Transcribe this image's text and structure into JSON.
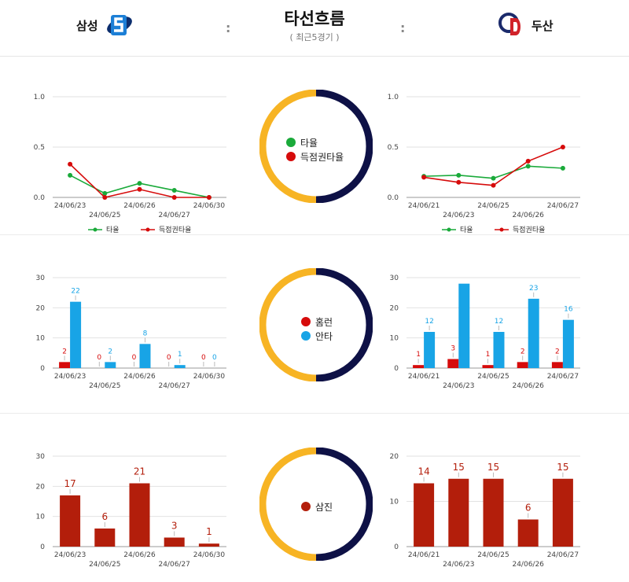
{
  "header": {
    "left_team": "삼성",
    "right_team": "두산",
    "title": "타선흐름",
    "subtitle": "( 최근5경기 )",
    "separator": ":"
  },
  "colors": {
    "green": "#1aaa3a",
    "red": "#d60b0b",
    "blue": "#18a4e6",
    "darkred": "#b31e0b",
    "gold": "#f7b424",
    "navy": "#0e1146"
  },
  "center_legends": {
    "avg": [
      {
        "label": "타율",
        "color": "#1aaa3a"
      },
      {
        "label": "득점권타율",
        "color": "#d60b0b"
      }
    ],
    "hr_hits": [
      {
        "label": "홈런",
        "color": "#d60b0b"
      },
      {
        "label": "안타",
        "color": "#18a4e6"
      }
    ],
    "so": [
      {
        "label": "삼진",
        "color": "#b31e0b"
      }
    ]
  },
  "chart_data": [
    {
      "id": "samsung-avg",
      "type": "line",
      "x": [
        "24/06/23",
        "24/06/25",
        "24/06/26",
        "24/06/27",
        "24/06/30"
      ],
      "ylim": [
        0,
        1.0
      ],
      "yticks": [
        "0.0",
        "0.5",
        "1.0"
      ],
      "series": [
        {
          "name": "타율",
          "color": "#1aaa3a",
          "values": [
            0.22,
            0.04,
            0.14,
            0.07,
            0.0
          ]
        },
        {
          "name": "득점권타율",
          "color": "#d60b0b",
          "values": [
            0.33,
            0.0,
            0.08,
            0.0,
            0.0
          ]
        }
      ]
    },
    {
      "id": "doosan-avg",
      "type": "line",
      "x": [
        "24/06/21",
        "24/06/23",
        "24/06/25",
        "24/06/26",
        "24/06/27"
      ],
      "ylim": [
        0,
        1.0
      ],
      "yticks": [
        "0.0",
        "0.5",
        "1.0"
      ],
      "series": [
        {
          "name": "타율",
          "color": "#1aaa3a",
          "values": [
            0.21,
            0.22,
            0.19,
            0.31,
            0.29
          ]
        },
        {
          "name": "득점권타율",
          "color": "#d60b0b",
          "values": [
            0.2,
            0.15,
            0.12,
            0.36,
            0.5
          ]
        }
      ]
    },
    {
      "id": "samsung-hr-hits",
      "type": "bar",
      "categories": [
        "24/06/23",
        "24/06/25",
        "24/06/26",
        "24/06/27",
        "24/06/30"
      ],
      "ylim": [
        0,
        30
      ],
      "yticks": [
        "0",
        "10",
        "20",
        "30"
      ],
      "series": [
        {
          "name": "홈런",
          "color": "#d60b0b",
          "values": [
            2,
            0,
            0,
            0,
            0
          ]
        },
        {
          "name": "안타",
          "color": "#18a4e6",
          "values": [
            22,
            2,
            8,
            1,
            0
          ]
        }
      ]
    },
    {
      "id": "doosan-hr-hits",
      "type": "bar",
      "categories": [
        "24/06/21",
        "24/06/23",
        "24/06/25",
        "24/06/26",
        "24/06/27"
      ],
      "ylim": [
        0,
        30
      ],
      "yticks": [
        "0",
        "10",
        "20",
        "30"
      ],
      "series": [
        {
          "name": "홈런",
          "color": "#d60b0b",
          "values": [
            1,
            3,
            1,
            2,
            2
          ]
        },
        {
          "name": "안타",
          "color": "#18a4e6",
          "values": [
            12,
            28,
            12,
            23,
            16
          ]
        }
      ],
      "labels": [
        [
          "1",
          "3",
          "1",
          "2",
          "2"
        ],
        [
          "12",
          "",
          "12",
          "23",
          "16"
        ]
      ]
    },
    {
      "id": "samsung-so",
      "type": "bar",
      "categories": [
        "24/06/23",
        "24/06/25",
        "24/06/26",
        "24/06/27",
        "24/06/30"
      ],
      "ylim": [
        0,
        30
      ],
      "yticks": [
        "0",
        "10",
        "20",
        "30"
      ],
      "series": [
        {
          "name": "삼진",
          "color": "#b31e0b",
          "values": [
            17,
            6,
            21,
            3,
            1
          ]
        }
      ]
    },
    {
      "id": "doosan-so",
      "type": "bar",
      "categories": [
        "24/06/21",
        "24/06/23",
        "24/06/25",
        "24/06/26",
        "24/06/27"
      ],
      "ylim": [
        0,
        20
      ],
      "yticks": [
        "0",
        "10",
        "20"
      ],
      "series": [
        {
          "name": "삼진",
          "color": "#b31e0b",
          "values": [
            14,
            15,
            15,
            6,
            15
          ]
        }
      ]
    }
  ]
}
